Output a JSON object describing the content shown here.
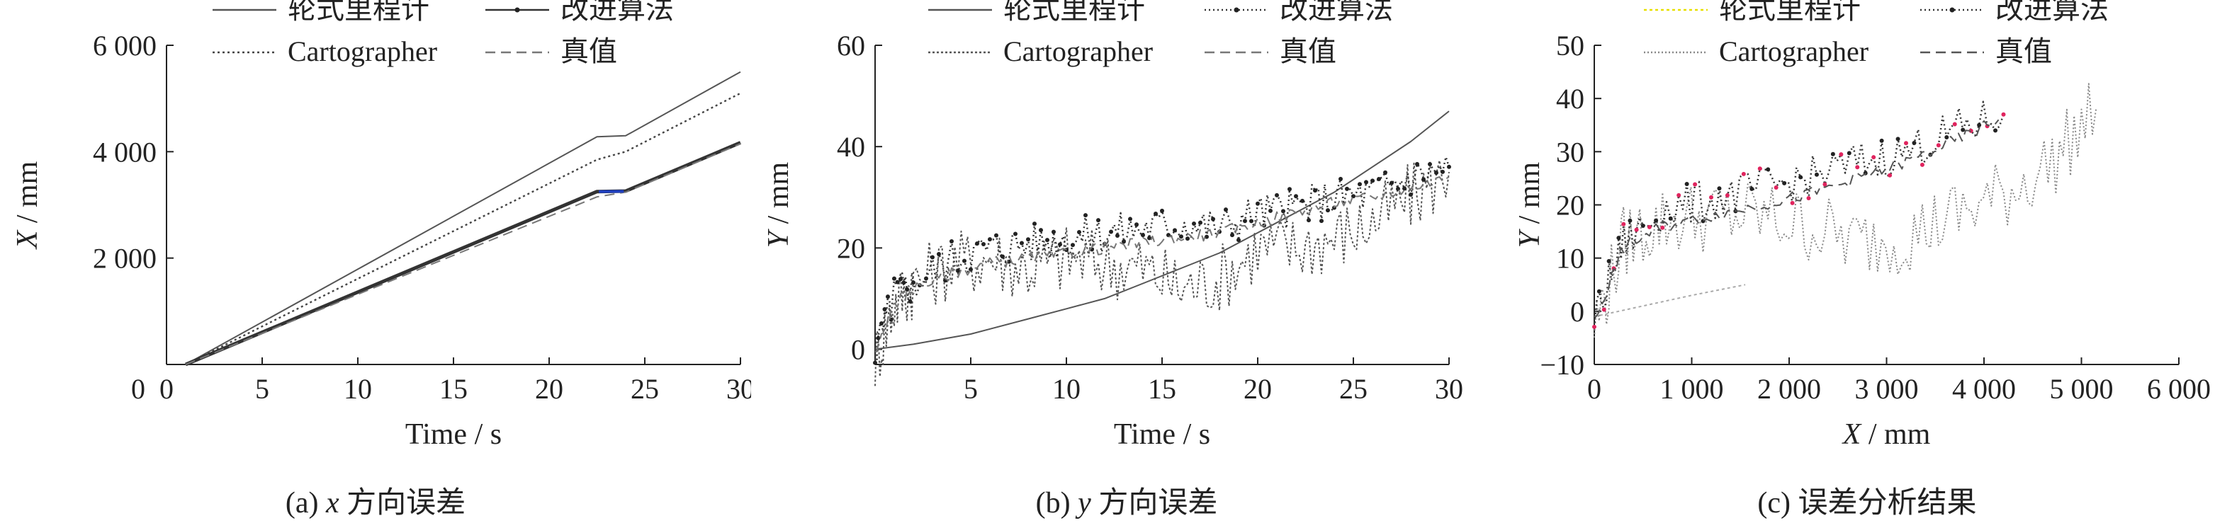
{
  "captions": [
    {
      "prefix": "(a) ",
      "var": "x",
      "suffix": " 方向误差"
    },
    {
      "prefix": "(b) ",
      "var": "y",
      "suffix": " 方向误差"
    },
    {
      "prefix": "(c) ",
      "var": "",
      "suffix": "误差分析结果"
    }
  ],
  "legend": {
    "wheel": "轮式里程计",
    "improved": "改进算法",
    "carto": "Cartographer",
    "truth": "真值"
  },
  "colors": {
    "axis": "#222222",
    "wheel_c": "#e8e000",
    "truth_a": "#1f3fbf",
    "improved_c": "#e0245e"
  },
  "chart_data": [
    {
      "type": "line",
      "xlabel": "Time / s",
      "ylabel_var": "X",
      "ylabel_unit": " / mm",
      "xlim": [
        0,
        30
      ],
      "ylim": [
        0,
        6000
      ],
      "xticks": [
        0,
        5,
        10,
        15,
        20,
        25,
        30
      ],
      "xtick_labels": [
        "0",
        "5",
        "10",
        "15",
        "20",
        "25",
        "30"
      ],
      "yticks": [
        2000,
        4000,
        6000
      ],
      "ytick_labels": [
        "2 000",
        "4 000",
        "6 000"
      ],
      "series": [
        {
          "key": "wheel",
          "x": [
            1,
            22.5,
            24,
            30
          ],
          "y": [
            0,
            4280,
            4300,
            5500
          ]
        },
        {
          "key": "carto",
          "x": [
            1,
            22.5,
            24,
            30
          ],
          "y": [
            0,
            3850,
            4000,
            5100
          ]
        },
        {
          "key": "improved",
          "x": [
            1,
            22.5,
            24,
            30
          ],
          "y": [
            0,
            3250,
            3260,
            4170
          ]
        },
        {
          "key": "truth",
          "x": [
            1,
            22.5,
            24,
            30
          ],
          "y": [
            0,
            3150,
            3240,
            4150
          ]
        }
      ]
    },
    {
      "type": "line",
      "xlabel": "Time / s",
      "ylabel_var": "Y",
      "ylabel_unit": " / mm",
      "xlim": [
        0,
        30
      ],
      "ylim": [
        -3,
        60
      ],
      "xticks": [
        5,
        10,
        15,
        20,
        25,
        30
      ],
      "xtick_labels": [
        "5",
        "10",
        "15",
        "20",
        "25",
        "30"
      ],
      "yticks": [
        0,
        20,
        40,
        60
      ],
      "ytick_labels": [
        "0",
        "20",
        "40",
        "60"
      ],
      "series": [
        {
          "key": "wheel",
          "x": [
            0,
            2,
            5,
            8,
            10,
            12,
            14,
            16,
            18,
            20,
            22,
            24,
            26,
            28,
            30
          ],
          "y": [
            0,
            1,
            3,
            6,
            8,
            10,
            13,
            16,
            19,
            23,
            27,
            31,
            36,
            41,
            47
          ]
        },
        {
          "key": "carto",
          "x": [
            0,
            1,
            2,
            4,
            6,
            8,
            10,
            12,
            14,
            16,
            18,
            20,
            22,
            24,
            26,
            28,
            30
          ],
          "y": [
            -2,
            9,
            13,
            17,
            18,
            16,
            18,
            17,
            16,
            12,
            14,
            20,
            20,
            22,
            25,
            30,
            35
          ]
        },
        {
          "key": "improved",
          "x": [
            0,
            1,
            2,
            4,
            6,
            8,
            10,
            12,
            14,
            16,
            18,
            20,
            22,
            24,
            26,
            28,
            30
          ],
          "y": [
            -1,
            11,
            13,
            18,
            20,
            21,
            22,
            23,
            24,
            25,
            24,
            27,
            28,
            30,
            31,
            34,
            36
          ]
        },
        {
          "key": "truth",
          "x": [
            0,
            1,
            2,
            4,
            6,
            8,
            10,
            12,
            14,
            16,
            18,
            20,
            22,
            24,
            26,
            28,
            30
          ],
          "y": [
            -1,
            9,
            12,
            15,
            17,
            18,
            19,
            20,
            21,
            22,
            23,
            25,
            27,
            29,
            30,
            32,
            34
          ]
        }
      ]
    },
    {
      "type": "scatter",
      "xlabel_var": "X",
      "xlabel_unit": " / mm",
      "ylabel_var": "Y",
      "ylabel_unit": " / mm",
      "xlim": [
        0,
        6000
      ],
      "ylim": [
        -10,
        50
      ],
      "xticks": [
        0,
        1000,
        2000,
        3000,
        4000,
        5000,
        6000
      ],
      "xtick_labels": [
        "0",
        "1 000",
        "2 000",
        "3 000",
        "4 000",
        "5 000",
        "6 000"
      ],
      "yticks": [
        -10,
        0,
        10,
        20,
        30,
        40,
        50
      ],
      "ytick_labels": [
        "−10",
        "0",
        "10",
        "20",
        "30",
        "40",
        "50"
      ],
      "series": [
        {
          "key": "wheel",
          "x": [
            0,
            500,
            1000,
            1550
          ],
          "y": [
            -1,
            1,
            3,
            5
          ]
        },
        {
          "key": "carto",
          "x": [
            0,
            300,
            700,
            1200,
            1700,
            2200,
            2700,
            3200,
            3700,
            4200,
            4700,
            5150
          ],
          "y": [
            -3,
            13,
            17,
            18,
            18,
            16,
            13,
            14,
            18,
            22,
            28,
            38
          ]
        },
        {
          "key": "improved",
          "x": [
            0,
            300,
            700,
            1200,
            1700,
            2200,
            2700,
            3200,
            3700,
            4200
          ],
          "y": [
            -2,
            13,
            19,
            21,
            23,
            25,
            28,
            30,
            34,
            37
          ]
        },
        {
          "key": "truth",
          "x": [
            0,
            300,
            700,
            1200,
            1700,
            2200,
            2700,
            3200,
            3700,
            4150
          ],
          "y": [
            -2,
            12,
            16,
            18,
            20,
            22,
            25,
            28,
            32,
            36
          ]
        }
      ]
    }
  ]
}
